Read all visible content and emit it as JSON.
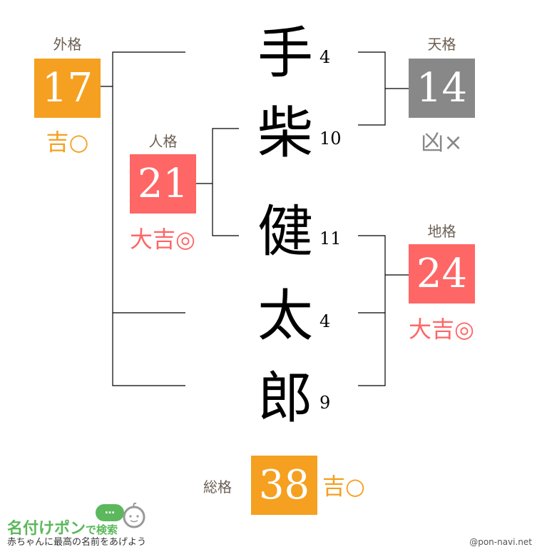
{
  "colors": {
    "kichi": "#f5a020",
    "daikichi": "#ff6666",
    "kyo": "#888888",
    "line": "#000000",
    "label": "#6b5e52"
  },
  "name": {
    "chars": [
      {
        "char": "手",
        "strokes": "4"
      },
      {
        "char": "柴",
        "strokes": "10"
      },
      {
        "char": "健",
        "strokes": "11"
      },
      {
        "char": "太",
        "strokes": "4"
      },
      {
        "char": "郎",
        "strokes": "9"
      }
    ]
  },
  "kaku": {
    "gaikaku": {
      "label": "外格",
      "value": "17",
      "verdict": "吉○"
    },
    "jinkaku": {
      "label": "人格",
      "value": "21",
      "verdict": "大吉◎"
    },
    "tenkaku": {
      "label": "天格",
      "value": "14",
      "verdict": "凶×"
    },
    "chikaku": {
      "label": "地格",
      "value": "24",
      "verdict": "大吉◎"
    },
    "soukaku": {
      "label": "総格",
      "value": "38",
      "verdict": "吉○"
    }
  },
  "footer": {
    "logo_main": "名付けポン",
    "logo_suffix": "で検索",
    "logo_bubble": "…",
    "tagline": "赤ちゃんに最高の名前をあげよう",
    "credit": "@pon-navi.net"
  }
}
